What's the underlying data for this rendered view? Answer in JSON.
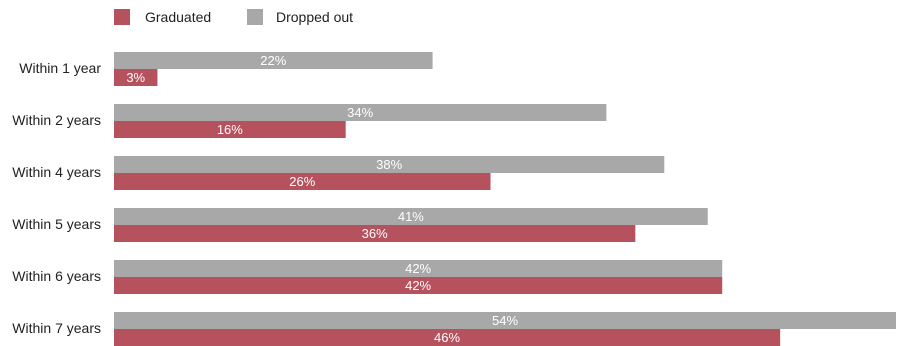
{
  "chart_data": {
    "type": "bar",
    "orientation": "horizontal",
    "categories": [
      "Within 1 year",
      "Within 2 years",
      "Within 4 years",
      "Within 5 years",
      "Within 6 years",
      "Within 7 years"
    ],
    "series": [
      {
        "name": "Dropped out",
        "color": "#a8a8a8",
        "values": [
          22,
          34,
          38,
          41,
          42,
          54
        ],
        "labels": [
          "22%",
          "34%",
          "38%",
          "41%",
          "42%",
          "54%"
        ]
      },
      {
        "name": "Graduated",
        "color": "#b5525e",
        "values": [
          3,
          16,
          26,
          36,
          42,
          46
        ],
        "labels": [
          "3%",
          "16%",
          "26%",
          "36%",
          "42%",
          "46%"
        ]
      }
    ],
    "legend": {
      "placement": "top-left",
      "order": [
        "Graduated",
        "Dropped out"
      ]
    },
    "xlim": [
      0,
      54
    ],
    "grid": false
  }
}
